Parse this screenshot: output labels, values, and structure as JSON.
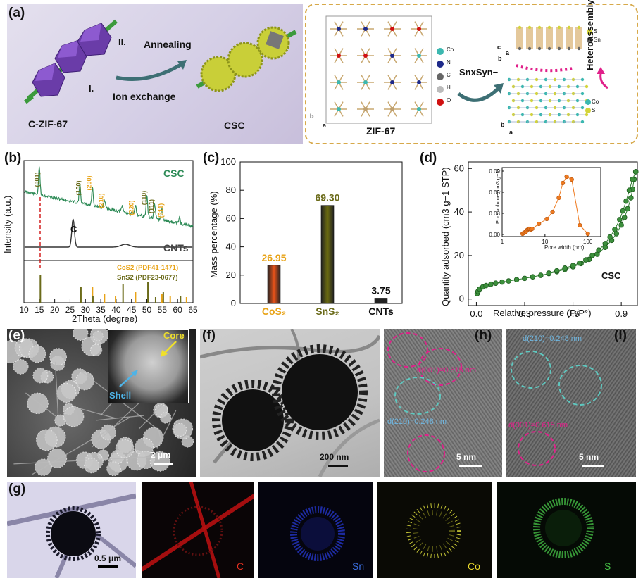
{
  "panel_a": {
    "label": "(a)",
    "step_ii": "II.",
    "annealing": "Annealing",
    "step_i": "I.",
    "ion_exchange": "Ion exchange",
    "czif": "C-ZIF-67",
    "csc": "CSC",
    "zif67": "ZIF-67",
    "legend_atoms": [
      "Co",
      "N",
      "C",
      "H",
      "O"
    ],
    "reagent": "SnxSyn−",
    "heteroassembly": "Heteroassembly",
    "sns2_legend": [
      "S",
      "Sn"
    ],
    "cos2_legend": [
      "Co",
      "S"
    ],
    "axes_c": "c",
    "axes_b": "b",
    "axes_a": "a"
  },
  "panel_b": {
    "label": "(b)",
    "ylabel": "Intensity (a.u.)",
    "xlabel": "2Theta (degree)",
    "csc": "CSC",
    "cnts": "CNTs",
    "c_peak": "C",
    "peaks": [
      "(001)",
      "(100)",
      "(200)",
      "(210)",
      "(220)",
      "(110)",
      "(111)",
      "(311)"
    ],
    "ref_cos2": "CoS2 (PDF41-1471)",
    "ref_sns2": "SnS2 (PDF23-0677)",
    "xticks": [
      "10",
      "15",
      "20",
      "25",
      "30",
      "35",
      "40",
      "45",
      "50",
      "55",
      "60",
      "65"
    ]
  },
  "panel_c": {
    "label": "(c)",
    "ylabel": "Mass percentage (%)",
    "yticks": [
      "0",
      "20",
      "40",
      "60",
      "80",
      "100"
    ]
  },
  "panel_d": {
    "label": "(d)",
    "ylabel": "Quantity adsorbed (cm3 g−1 STP)",
    "xlabel": "Relative pressure (P/P°)",
    "csc": "CSC",
    "yticks": [
      "0",
      "20",
      "40",
      "60"
    ],
    "xticks": [
      "0.0",
      "0.3",
      "0.6",
      "0.9"
    ],
    "inset_ylabel": "Pore volume (cm3 g−1)",
    "inset_xlabel": "Pore width (nm)",
    "inset_yticks": [
      "0.00",
      "0.03",
      "0.06",
      "0.09"
    ],
    "inset_xticks": [
      "1",
      "10",
      "100"
    ]
  },
  "panel_e": {
    "label": "(e)",
    "core": "Core",
    "shell": "Shell",
    "scale": "2 μm"
  },
  "panel_f": {
    "label": "(f)",
    "scale": "200 nm"
  },
  "panel_h": {
    "label": "(h)",
    "d001": "d(001)=0.615 nm",
    "d210": "d(210)=0.248 nm",
    "scale": "5 nm"
  },
  "panel_i": {
    "label": "(I)",
    "d210": "d(210)=0.248 nm",
    "d001": "d(001)=0.615 nm",
    "scale": "5 nm"
  },
  "panel_g": {
    "label": "(g)",
    "scale": "0.5 μm",
    "elements": [
      "C",
      "Sn",
      "Co",
      "S"
    ]
  },
  "colors": {
    "csc_green": "#2e8b57",
    "cos2_orange": "#e8a317",
    "sns2_olive": "#6b6b1a",
    "bar_cos2": "#e8531a",
    "bar_sns2": "#6b6b10",
    "bar_cnts": "#222222",
    "iso_green": "#2f7d2f",
    "inset_orange": "#ef7a1f",
    "c_map": "#d01010",
    "sn_map": "#2233bb",
    "co_map": "#d4d43a",
    "s_map": "#3fae3f"
  },
  "chart_data": [
    {
      "type": "line",
      "panel": "b",
      "xlabel": "2Theta (degree)",
      "ylabel": "Intensity (a.u.)",
      "xlim": [
        10,
        65
      ],
      "series": [
        {
          "name": "CSC"
        },
        {
          "name": "CNTs"
        }
      ],
      "reference_lines": {
        "CoS2 (PDF41-1471)": [
          28.5,
          32.3,
          36.2,
          39.8,
          46.3,
          54.9,
          57.6,
          62.9
        ],
        "SnS2 (PDF23-0677)": [
          15.0,
          28.2,
          32.1,
          41.9,
          50.0,
          52.5,
          55.0,
          60.6
        ]
      },
      "peak_labels": [
        {
          "label": "(001)",
          "x": 15.0
        },
        {
          "label": "(100)",
          "x": 28.2
        },
        {
          "label": "(200)",
          "x": 32.3
        },
        {
          "label": "(210)",
          "x": 36.2
        },
        {
          "label": "(220)",
          "x": 46.3
        },
        {
          "label": "(110)",
          "x": 50.0
        },
        {
          "label": "(111)",
          "x": 52.5
        },
        {
          "label": "(311)",
          "x": 54.9
        },
        {
          "label": "C",
          "x": 26.0
        }
      ]
    },
    {
      "type": "bar",
      "panel": "c",
      "categories": [
        "CoS2",
        "SnS2",
        "CNTs"
      ],
      "values": [
        26.95,
        69.3,
        3.75
      ],
      "ylabel": "Mass percentage (%)",
      "ylim": [
        0,
        100
      ],
      "value_labels": [
        "26.95",
        "69.30",
        "3.75"
      ]
    },
    {
      "type": "scatter",
      "panel": "d",
      "xlabel": "Relative pressure (P/P°)",
      "ylabel": "Quantity adsorbed (cm3 g−1 STP)",
      "xlim": [
        -0.05,
        1.0
      ],
      "ylim": [
        -3,
        63
      ],
      "series": [
        {
          "name": "CSC",
          "x": [
            0.005,
            0.01,
            0.02,
            0.04,
            0.06,
            0.09,
            0.12,
            0.16,
            0.2,
            0.25,
            0.3,
            0.35,
            0.4,
            0.45,
            0.5,
            0.55,
            0.6,
            0.65,
            0.7,
            0.75,
            0.8,
            0.84,
            0.87,
            0.9,
            0.92,
            0.94,
            0.96,
            0.97,
            0.98,
            0.99
          ],
          "y": [
            2.5,
            3.5,
            4.6,
            5.6,
            6.2,
            6.8,
            7.3,
            7.8,
            8.3,
            8.9,
            9.5,
            10.2,
            10.9,
            11.7,
            12.6,
            13.6,
            14.8,
            16.3,
            18.2,
            20.6,
            23.8,
            27.0,
            30.0,
            34.0,
            37.5,
            41.5,
            46.5,
            50.5,
            55.0,
            58.5
          ]
        },
        {
          "name": "CSC desorption",
          "x": [
            0.99,
            0.97,
            0.95,
            0.93,
            0.91,
            0.89,
            0.86,
            0.83,
            0.8,
            0.76,
            0.72,
            0.68,
            0.64,
            0.6,
            0.55,
            0.5,
            0.45
          ],
          "y": [
            58.5,
            55.0,
            50.0,
            45.0,
            40.5,
            36.5,
            32.0,
            28.5,
            25.5,
            22.5,
            20.0,
            18.0,
            16.5,
            15.4,
            14.2,
            13.0,
            11.9
          ]
        }
      ]
    },
    {
      "type": "line",
      "panel": "d-inset",
      "xlabel": "Pore width (nm)",
      "ylabel": "Pore volume (cm3 g−1)",
      "xscale": "log",
      "xlim": [
        1,
        200
      ],
      "ylim": [
        -0.003,
        0.095
      ],
      "series": [
        {
          "x": [
            3.0,
            3.2,
            3.4,
            3.6,
            3.8,
            4.0,
            4.2,
            4.4,
            4.7,
            5.0,
            7.2,
            11,
            15,
            21,
            26,
            32,
            42,
            65,
            100
          ],
          "y": [
            0.001,
            0.002,
            0.003,
            0.004,
            0.006,
            0.007,
            0.008,
            0.008,
            0.007,
            0.008,
            0.015,
            0.022,
            0.032,
            0.052,
            0.073,
            0.082,
            0.078,
            0.013,
            0.001
          ]
        }
      ]
    }
  ]
}
